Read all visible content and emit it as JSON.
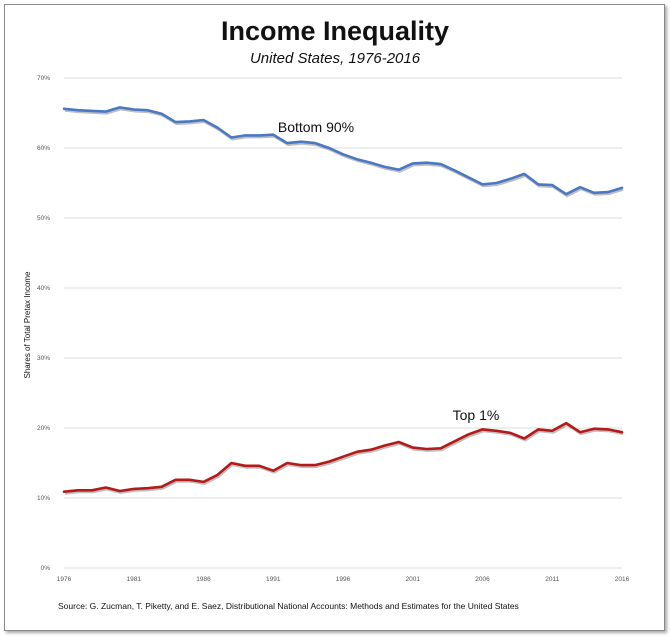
{
  "chart_data": {
    "type": "line",
    "title": "Income Inequality",
    "subtitle": "United States, 1976-2016",
    "ylabel": "Shares of Total Pretax Income",
    "xlabel": "",
    "source": "Source: G. Zucman, T. Piketty, and E. Saez, Distributional National Accounts: Methods and Estimates for the United States",
    "x": [
      1976,
      1977,
      1978,
      1979,
      1980,
      1981,
      1982,
      1983,
      1984,
      1985,
      1986,
      1987,
      1988,
      1989,
      1990,
      1991,
      1992,
      1993,
      1994,
      1995,
      1996,
      1997,
      1998,
      1999,
      2000,
      2001,
      2002,
      2003,
      2004,
      2005,
      2006,
      2007,
      2008,
      2009,
      2010,
      2011,
      2012,
      2013,
      2014,
      2015,
      2016
    ],
    "xlim": [
      1976,
      2016
    ],
    "ylim": [
      0,
      70
    ],
    "x_ticks": [
      "1976",
      "1981",
      "1986",
      "1991",
      "1996",
      "2001",
      "2006",
      "2011",
      "2016"
    ],
    "y_ticks": [
      "0%",
      "10%",
      "20%",
      "30%",
      "40%",
      "50%",
      "60%",
      "70%"
    ],
    "grid": true,
    "series": [
      {
        "name": "Bottom 90%",
        "color": "#4a78c2",
        "values": [
          65.6,
          65.4,
          65.3,
          65.2,
          65.8,
          65.5,
          65.4,
          64.9,
          63.7,
          63.8,
          64.0,
          62.9,
          61.5,
          61.8,
          61.8,
          61.9,
          60.7,
          60.9,
          60.7,
          60.0,
          59.1,
          58.4,
          57.9,
          57.3,
          56.9,
          57.8,
          57.9,
          57.7,
          56.8,
          55.8,
          54.8,
          55.0,
          55.6,
          56.3,
          54.8,
          54.7,
          53.4,
          54.4,
          53.6,
          53.7,
          54.3
        ]
      },
      {
        "name": "Top 1%",
        "color": "#b51a1a",
        "values": [
          10.9,
          11.1,
          11.1,
          11.5,
          11.0,
          11.3,
          11.4,
          11.6,
          12.6,
          12.6,
          12.3,
          13.3,
          15.0,
          14.6,
          14.6,
          13.9,
          15.0,
          14.7,
          14.7,
          15.2,
          15.9,
          16.6,
          16.9,
          17.5,
          18.0,
          17.2,
          17.0,
          17.1,
          18.1,
          19.1,
          19.8,
          19.6,
          19.3,
          18.5,
          19.8,
          19.6,
          20.7,
          19.4,
          19.9,
          19.8,
          19.4
        ]
      }
    ]
  }
}
